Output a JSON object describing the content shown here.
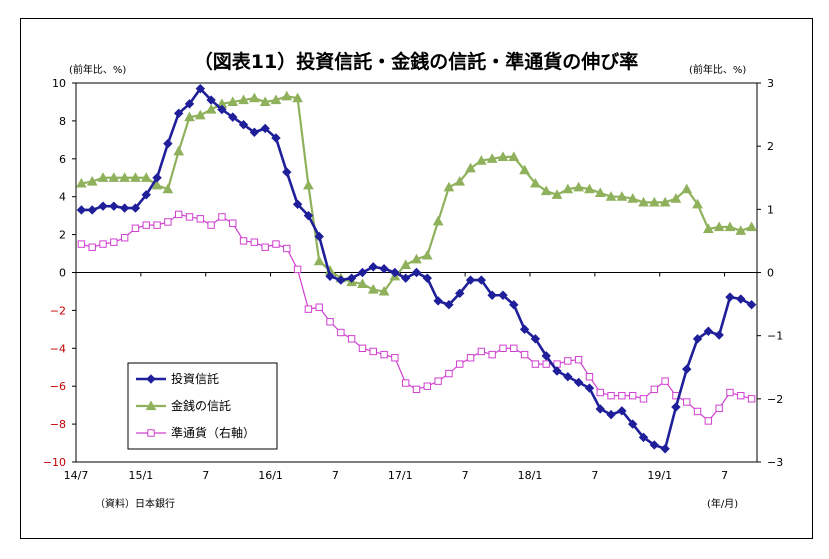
{
  "chart_data": {
    "type": "line",
    "title": "（図表11）投資信託・金銭の信託・準通貨の伸び率",
    "left_unit": "(前年比、%)",
    "right_unit": "(前年比、%)",
    "source": "（資料）日本銀行",
    "x_unit": "(年/月)",
    "x_tick_labels": [
      "14/7",
      "15/1",
      "7",
      "16/1",
      "7",
      "17/1",
      "7",
      "18/1",
      "7",
      "19/1",
      "7"
    ],
    "x_start": "2014-07",
    "y_left_ticks": [
      "10",
      "8",
      "6",
      "4",
      "2",
      "0",
      "−2",
      "−4",
      "−6",
      "−8",
      "−10"
    ],
    "y_right_ticks": [
      "3",
      "2",
      "1",
      "0",
      "−1",
      "−2",
      "−3"
    ],
    "ylim_left": [
      -10,
      10
    ],
    "ylim_right": [
      -3,
      3
    ],
    "negative_tick_color": "#c00000",
    "series": [
      {
        "name": "投資信託",
        "axis": "left",
        "color": "#1f1f9a",
        "marker": "diamond",
        "values": [
          3.3,
          3.3,
          3.5,
          3.5,
          3.4,
          3.4,
          4.1,
          5.0,
          6.8,
          8.4,
          8.9,
          9.7,
          9.1,
          8.6,
          8.2,
          7.8,
          7.4,
          7.6,
          7.1,
          5.3,
          3.6,
          3.0,
          1.9,
          -0.2,
          -0.4,
          -0.3,
          0.0,
          0.3,
          0.2,
          0.0,
          -0.3,
          0.0,
          -0.3,
          -1.5,
          -1.7,
          -1.1,
          -0.4,
          -0.4,
          -1.2,
          -1.2,
          -1.7,
          -3.0,
          -3.5,
          -4.4,
          -5.2,
          -5.5,
          -5.8,
          -6.1,
          -7.2,
          -7.5,
          -7.3,
          -8.0,
          -8.7,
          -9.1,
          -9.3,
          -7.1,
          -5.1,
          -3.5,
          -3.1,
          -3.3,
          -1.3,
          -1.4,
          -1.7
        ]
      },
      {
        "name": "金銭の信託",
        "axis": "left",
        "color": "#8fb15c",
        "marker": "triangle",
        "values": [
          4.7,
          4.8,
          5.0,
          5.0,
          5.0,
          5.0,
          5.0,
          4.6,
          4.4,
          6.4,
          8.2,
          8.3,
          8.6,
          8.9,
          9.0,
          9.1,
          9.2,
          9.0,
          9.1,
          9.3,
          9.2,
          4.6,
          0.6,
          0.1,
          -0.3,
          -0.5,
          -0.6,
          -0.9,
          -1.0,
          -0.2,
          0.4,
          0.7,
          0.9,
          2.7,
          4.5,
          4.8,
          5.5,
          5.9,
          6.0,
          6.1,
          6.1,
          5.4,
          4.7,
          4.3,
          4.1,
          4.4,
          4.5,
          4.4,
          4.2,
          4.0,
          4.0,
          3.9,
          3.7,
          3.7,
          3.7,
          3.9,
          4.4,
          3.6,
          2.3,
          2.4,
          2.4,
          2.2,
          2.4
        ]
      },
      {
        "name": "準通貨（右軸）",
        "axis": "right",
        "color": "#d040d0",
        "marker": "square",
        "values": [
          0.45,
          0.4,
          0.45,
          0.48,
          0.55,
          0.7,
          0.75,
          0.75,
          0.8,
          0.92,
          0.88,
          0.85,
          0.75,
          0.88,
          0.78,
          0.5,
          0.48,
          0.4,
          0.45,
          0.38,
          0.05,
          -0.58,
          -0.55,
          -0.78,
          -0.95,
          -1.05,
          -1.2,
          -1.25,
          -1.3,
          -1.35,
          -1.75,
          -1.85,
          -1.8,
          -1.72,
          -1.6,
          -1.45,
          -1.35,
          -1.25,
          -1.3,
          -1.2,
          -1.2,
          -1.3,
          -1.45,
          -1.45,
          -1.45,
          -1.4,
          -1.38,
          -1.65,
          -1.9,
          -1.95,
          -1.95,
          -1.95,
          -2.0,
          -1.85,
          -1.72,
          -1.95,
          -2.05,
          -2.2,
          -2.35,
          -2.15,
          -1.9,
          -1.95,
          -2.0
        ]
      }
    ]
  }
}
